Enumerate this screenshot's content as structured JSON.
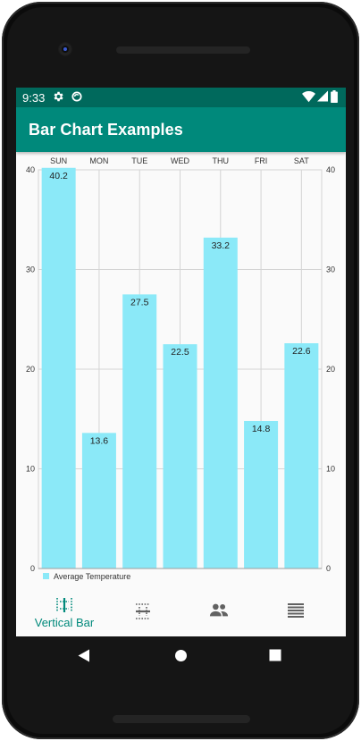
{
  "status_bar": {
    "time": "9:33",
    "icons": [
      "settings-icon",
      "sync-icon",
      "wifi-icon",
      "signal-icon",
      "battery-icon"
    ]
  },
  "app_bar": {
    "title": "Bar Chart Examples"
  },
  "chart_data": {
    "type": "bar",
    "categories": [
      "SUN",
      "MON",
      "TUE",
      "WED",
      "THU",
      "FRI",
      "SAT"
    ],
    "series": [
      {
        "name": "Average Temperature",
        "values": [
          40.2,
          13.6,
          27.5,
          22.5,
          33.2,
          14.8,
          22.6
        ]
      }
    ],
    "data_labels": [
      "40.2",
      "13.6",
      "27.5",
      "22.5",
      "33.2",
      "14.8",
      "22.6"
    ],
    "ylim": [
      0,
      40
    ],
    "y_ticks": [
      "0",
      "10",
      "20",
      "30",
      "40"
    ],
    "x_axis_position": "top",
    "y_axes": "left and right",
    "grid": true,
    "legend": "bottom-left",
    "colors": {
      "bar": "#8be9f8",
      "grid": "#d4d4d4",
      "text": "#333333"
    }
  },
  "bottom_nav": {
    "items": [
      {
        "label": "Vertical Bar",
        "icon": "vertical-bar-icon",
        "selected": true
      },
      {
        "label": "",
        "icon": "horizontal-bar-icon",
        "selected": false
      },
      {
        "label": "",
        "icon": "people-icon",
        "selected": false
      },
      {
        "label": "",
        "icon": "list-icon",
        "selected": false
      }
    ],
    "colors": {
      "selected": "#00897b",
      "unselected": "#616161"
    }
  },
  "system_nav": {
    "icons": [
      "back-icon",
      "home-icon",
      "recents-icon"
    ]
  }
}
